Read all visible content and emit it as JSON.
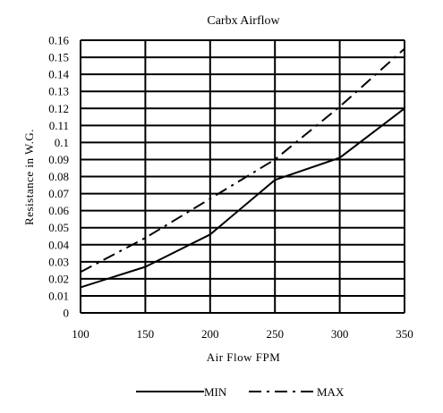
{
  "chart_data": {
    "type": "line",
    "title": "Carbx Airflow",
    "xlabel": "Air Flow FPM",
    "ylabel": "Resistance in W.G.",
    "x": [
      100,
      150,
      200,
      250,
      300,
      350
    ],
    "x_ticks": [
      "100",
      "150",
      "200",
      "250",
      "300",
      "350"
    ],
    "y_ticks": [
      "0",
      "0.01",
      "0.02",
      "0.03",
      "0.04",
      "0.05",
      "0.06",
      "0.07",
      "0.08",
      "0.09",
      "0.1",
      "0.11",
      "0.12",
      "0.13",
      "0.14",
      "0.15",
      "0.16"
    ],
    "xlim": [
      100,
      350
    ],
    "ylim": [
      0,
      0.16
    ],
    "grid": true,
    "legend_position": "bottom-center",
    "series": [
      {
        "name": "MIN",
        "values": [
          0.015,
          0.027,
          0.046,
          0.078,
          0.091,
          0.12
        ],
        "color": "#000000",
        "style": "solid"
      },
      {
        "name": "MAX",
        "values": [
          0.024,
          0.044,
          0.067,
          0.09,
          0.121,
          0.155
        ],
        "color": "#000000",
        "style": "dash-dot"
      }
    ]
  }
}
